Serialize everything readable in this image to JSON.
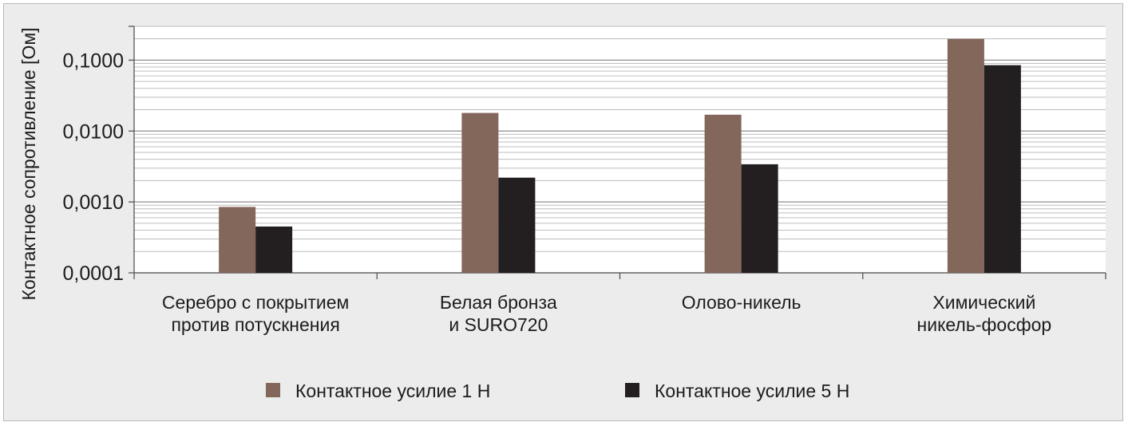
{
  "chart_data": {
    "type": "bar",
    "ylabel": "Контактное сопротивление [Ом]",
    "yscale": "log",
    "ylim": [
      0.0001,
      0.3
    ],
    "yticks": [
      {
        "value": 0.0001,
        "label": "0,0001"
      },
      {
        "value": 0.001,
        "label": "0,0010"
      },
      {
        "value": 0.01,
        "label": "0,0100"
      },
      {
        "value": 0.1,
        "label": "0,1000"
      }
    ],
    "grid": true,
    "legend_position": "bottom",
    "categories": [
      [
        "Серебро с покрытием",
        "против потускнения"
      ],
      [
        "Белая бронза",
        "и SURO720"
      ],
      [
        "Олово-никель"
      ],
      [
        "Химический",
        "никель-фосфор"
      ]
    ],
    "series": [
      {
        "name": "Контактное усилие 1 Н",
        "color": "#83675b",
        "values": [
          0.00085,
          0.018,
          0.017,
          0.2
        ]
      },
      {
        "name": "Контактное усилие 5 Н",
        "color": "#231f20",
        "values": [
          0.00045,
          0.0022,
          0.0034,
          0.085
        ]
      }
    ]
  }
}
